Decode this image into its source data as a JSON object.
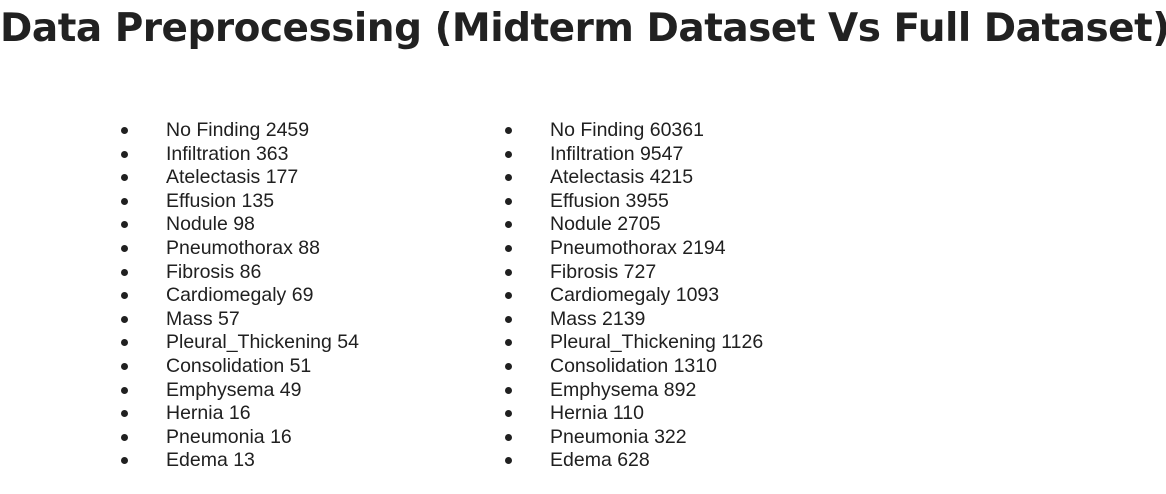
{
  "title": "Data Preprocessing (Midterm Dataset Vs Full Dataset)",
  "midterm_list": [
    "No Finding 2459",
    "Infiltration 363",
    "Atelectasis 177",
    "Effusion 135",
    "Nodule 98",
    "Pneumothorax 88",
    "Fibrosis 86",
    "Cardiomegaly 69",
    "Mass 57",
    "Pleural_Thickening 54",
    "Consolidation 51",
    "Emphysema 49",
    "Hernia 16",
    "Pneumonia 16",
    "Edema 13"
  ],
  "full_list": [
    "No Finding 60361",
    "Infiltration 9547",
    "Atelectasis 4215",
    "Effusion 3955",
    "Nodule 2705",
    "Pneumothorax 2194",
    "Fibrosis 727",
    "Cardiomegaly 1093",
    "Mass 2139",
    "Pleural_Thickening 1126",
    "Consolidation 1310",
    "Emphysema 892",
    "Hernia 110",
    "Pneumonia 322",
    "Edema 628"
  ]
}
